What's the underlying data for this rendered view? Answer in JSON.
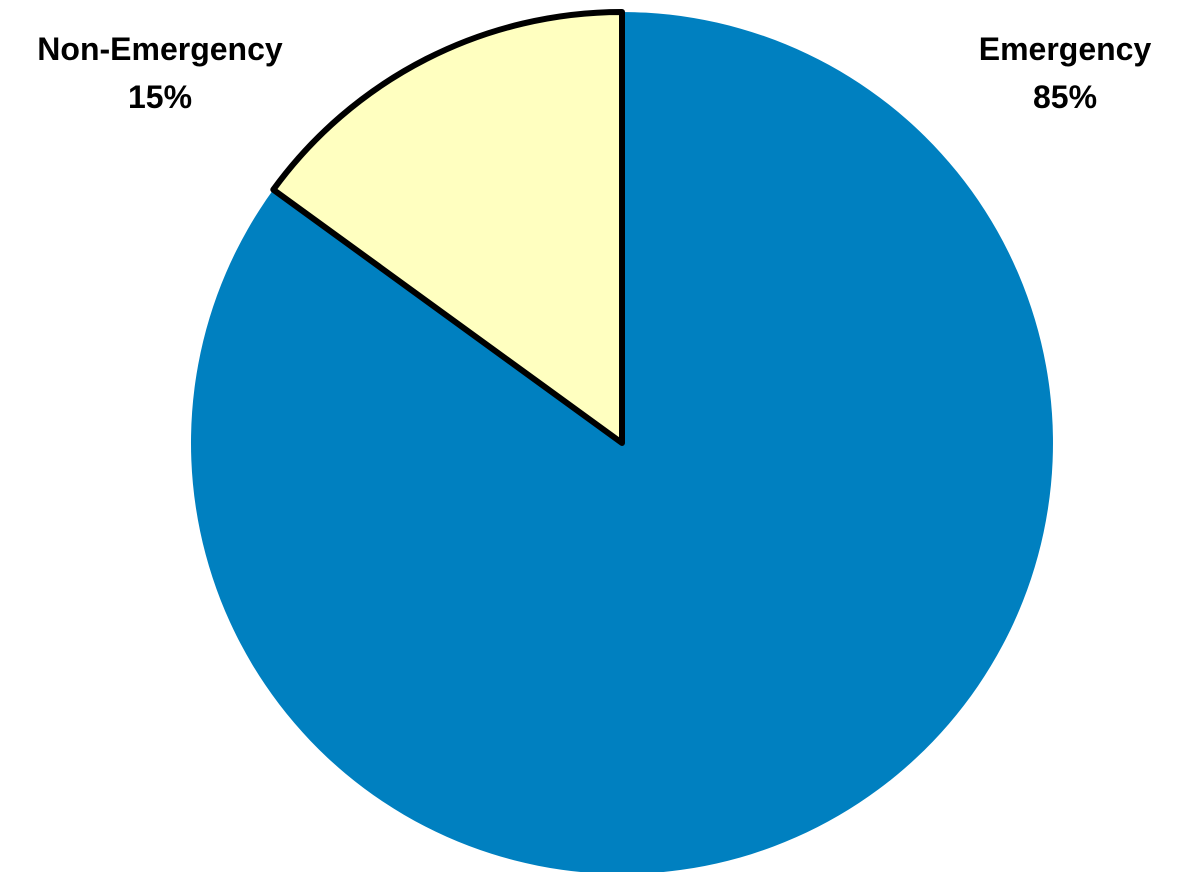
{
  "chart_data": {
    "type": "pie",
    "title": "",
    "categories": [
      "Emergency",
      "Non-Emergency"
    ],
    "values": [
      85,
      15
    ],
    "percent_labels": [
      "85%",
      "15%"
    ],
    "colors": [
      "#0080C0",
      "#FFFFC0"
    ],
    "start": "12 o'clock",
    "direction": "clockwise",
    "legend": "none (slice labels outside pie)"
  }
}
